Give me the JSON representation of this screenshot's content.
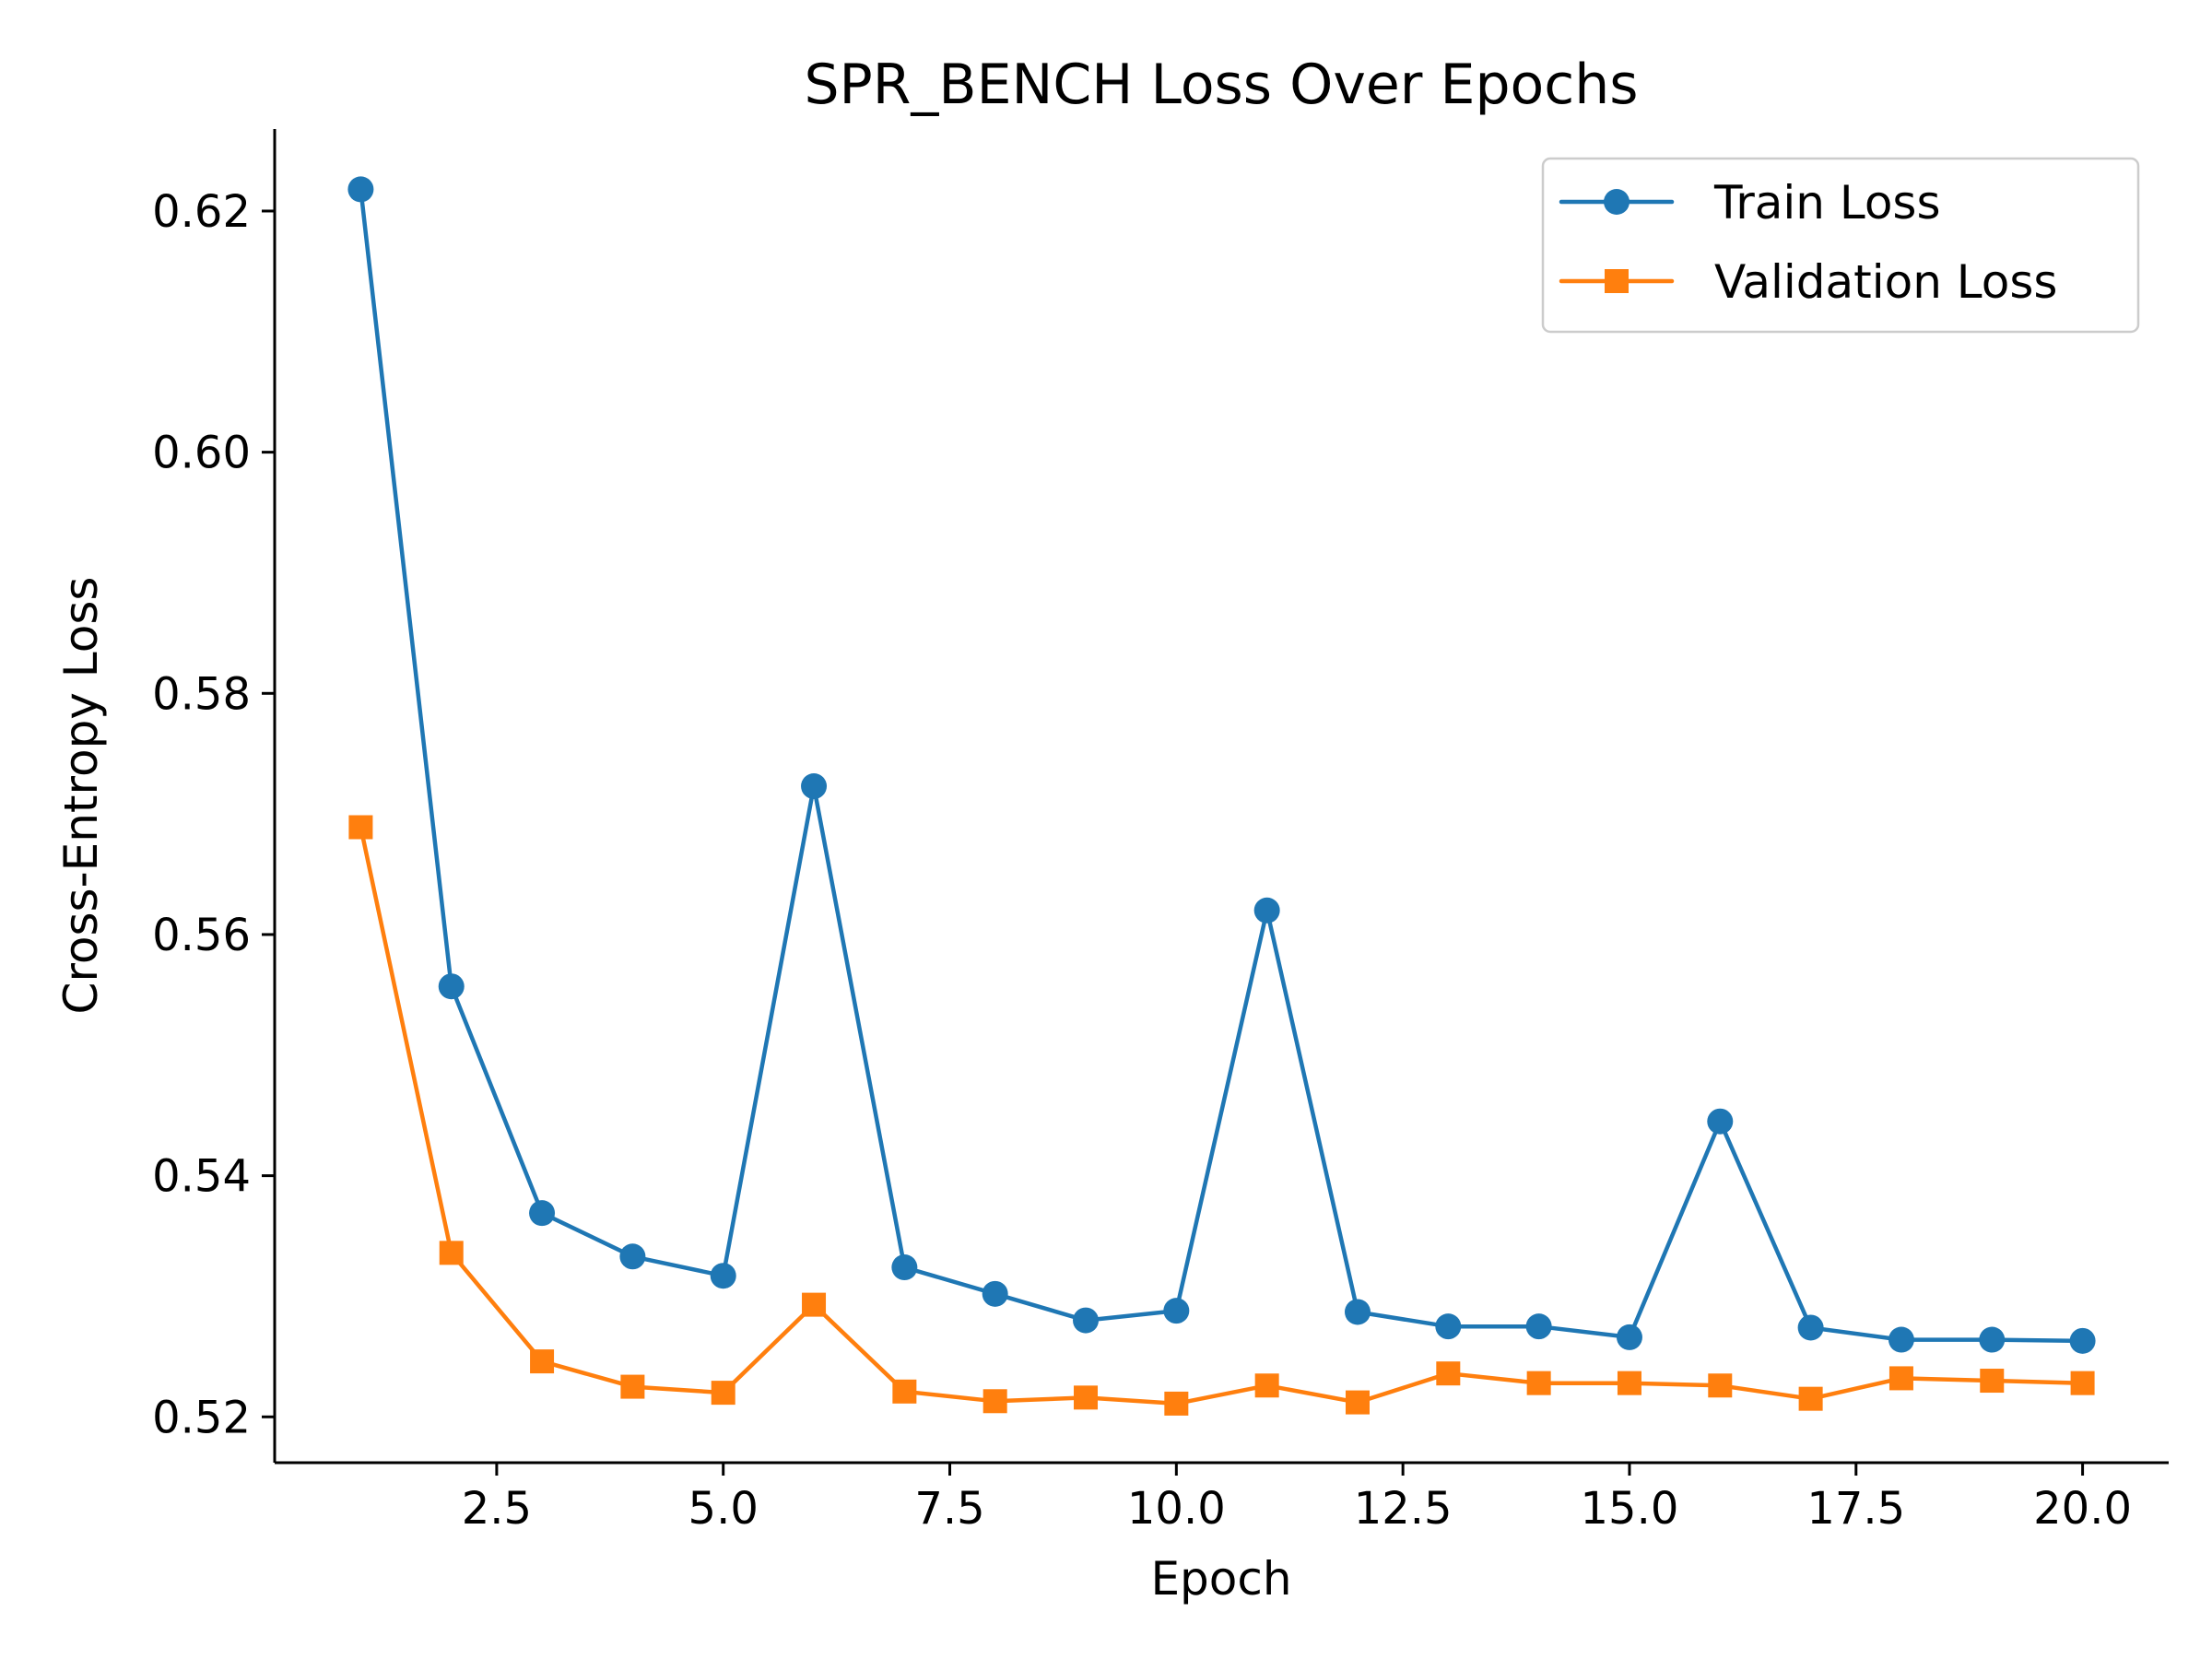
{
  "chart_data": {
    "type": "line",
    "title": "SPR_BENCH Loss Over Epochs",
    "xlabel": "Epoch",
    "ylabel": "Cross-Entropy Loss",
    "xlim": [
      0.05,
      20.95
    ],
    "ylim": [
      0.5162,
      0.6268
    ],
    "xticks": [
      2.5,
      5.0,
      7.5,
      10.0,
      12.5,
      15.0,
      17.5,
      20.0
    ],
    "xtick_labels": [
      "2.5",
      "5.0",
      "7.5",
      "10.0",
      "12.5",
      "15.0",
      "17.5",
      "20.0"
    ],
    "yticks": [
      0.52,
      0.54,
      0.56,
      0.58,
      0.6,
      0.62
    ],
    "ytick_labels": [
      "0.52",
      "0.54",
      "0.56",
      "0.58",
      "0.60",
      "0.62"
    ],
    "grid": false,
    "legend_position": "top-right",
    "x": [
      1,
      2,
      3,
      4,
      5,
      6,
      7,
      8,
      9,
      10,
      11,
      12,
      13,
      14,
      15,
      16,
      17,
      18,
      19,
      20
    ],
    "series": [
      {
        "name": "Train Loss",
        "color": "#1f77b4",
        "marker": "circle",
        "values": [
          0.6218,
          0.5557,
          0.5369,
          0.5333,
          0.5317,
          0.5723,
          0.5324,
          0.5302,
          0.528,
          0.5288,
          0.562,
          0.5287,
          0.5275,
          0.5275,
          0.5266,
          0.5445,
          0.5274,
          0.5264,
          0.5264,
          0.5263
        ]
      },
      {
        "name": "Validation Loss",
        "color": "#ff7f0e",
        "marker": "square",
        "values": [
          0.5689,
          0.5336,
          0.5246,
          0.5225,
          0.522,
          0.5293,
          0.5221,
          0.5213,
          0.5216,
          0.5211,
          0.5226,
          0.5212,
          0.5236,
          0.5228,
          0.5228,
          0.5226,
          0.5215,
          0.5232,
          0.523,
          0.5228
        ]
      }
    ]
  }
}
